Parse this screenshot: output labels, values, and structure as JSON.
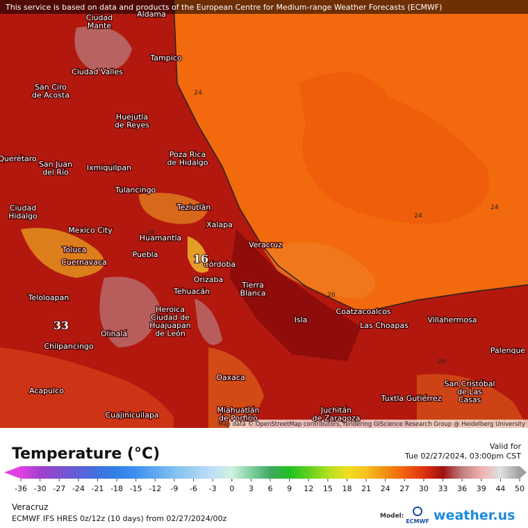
{
  "banner": "This service is based on data and products of the European Centre for Medium-range Weather Forecasts (ECMWF)",
  "attribution": "Map data © OpenStreetMap contributors, rendering GIScience Research Group @ Heidelberg University",
  "cities": [
    {
      "lines": [
        "Aldama"
      ]
    },
    {
      "lines": [
        "Ciudad",
        "Mante"
      ]
    },
    {
      "lines": [
        "Tampico"
      ]
    },
    {
      "lines": [
        "Ciudad Valles"
      ]
    },
    {
      "lines": [
        "San Ciro",
        "de Acosta"
      ]
    },
    {
      "lines": [
        "Huejutla",
        "de Reyes"
      ]
    },
    {
      "lines": [
        "Poza Rica",
        "de Hidalgo"
      ]
    },
    {
      "lines": [
        "Querétaro"
      ]
    },
    {
      "lines": [
        "San Juan",
        "del Río"
      ]
    },
    {
      "lines": [
        "Ixmiquilpan"
      ]
    },
    {
      "lines": [
        "Tulancingo"
      ]
    },
    {
      "lines": [
        "Teziutlán"
      ]
    },
    {
      "lines": [
        "Ciudad",
        "Hidalgo"
      ]
    },
    {
      "lines": [
        "Xalapa"
      ]
    },
    {
      "lines": [
        "Mexico City"
      ]
    },
    {
      "lines": [
        "Huamantla"
      ]
    },
    {
      "lines": [
        "Veracruz"
      ]
    },
    {
      "lines": [
        "Toluca"
      ]
    },
    {
      "lines": [
        "Puebla"
      ]
    },
    {
      "lines": [
        "Córdoba"
      ]
    },
    {
      "lines": [
        "Cuernavaca"
      ]
    },
    {
      "lines": [
        "Orizaba"
      ]
    },
    {
      "lines": [
        "Tierra",
        "Blanca"
      ]
    },
    {
      "lines": [
        "Tehuacán"
      ]
    },
    {
      "lines": [
        "Teloloapan"
      ]
    },
    {
      "lines": [
        "Heroica",
        "Ciudad de",
        "Huajuapan",
        "de León"
      ]
    },
    {
      "lines": [
        "Coatzacoalcos"
      ]
    },
    {
      "lines": [
        "Isla"
      ]
    },
    {
      "lines": [
        "Las Choapas"
      ]
    },
    {
      "lines": [
        "Villahermosa"
      ]
    },
    {
      "lines": [
        "Olinalá"
      ]
    },
    {
      "lines": [
        "Chilpancingo"
      ]
    },
    {
      "lines": [
        "Palenque"
      ]
    },
    {
      "lines": [
        "Oaxaca"
      ]
    },
    {
      "lines": [
        "San Cristóbal",
        "de Las",
        "Casas"
      ]
    },
    {
      "lines": [
        "Acapulco"
      ]
    },
    {
      "lines": [
        "Tuxtla Gutiérrez"
      ]
    },
    {
      "lines": [
        "Cuajinicuilapa"
      ]
    },
    {
      "lines": [
        "Miahuatlán",
        "de Porfirio"
      ]
    },
    {
      "lines": [
        "Juchitán",
        "de Zaragoza"
      ]
    }
  ],
  "contour_labels": [
    24,
    24,
    24,
    26,
    28,
    28
  ],
  "extreme_labels": [
    16,
    33
  ],
  "legend": {
    "title": "Temperature (°C)",
    "ticks": [
      -36,
      -30,
      -27,
      -24,
      -21,
      -18,
      -15,
      -12,
      -9,
      -6,
      -3,
      0,
      3,
      6,
      9,
      12,
      15,
      18,
      21,
      24,
      27,
      30,
      33,
      36,
      39,
      44,
      50
    ],
    "colors": [
      "#e040e0",
      "#a040d0",
      "#8050d0",
      "#6060d8",
      "#4070e0",
      "#3080e8",
      "#4090f0",
      "#60a8f0",
      "#80c0f0",
      "#a0d0f0",
      "#c0e0f8",
      "#d0f0e0",
      "#80d0a0",
      "#40a860",
      "#20c020",
      "#60d020",
      "#b0e020",
      "#f0e020",
      "#f8c020",
      "#f09010",
      "#f06010",
      "#e03010",
      "#a01010",
      "#c08080",
      "#f0b0b0",
      "#e0e0e0",
      "#a0a0a0"
    ]
  },
  "valid": {
    "label": "Valid for",
    "time": "Tue 02/27/2024, 03:00pm CST"
  },
  "footer": {
    "location": "Veracruz",
    "model_run": "ECMWF IFS HRES 0z/12z (10 days) from 02/27/2024/00z",
    "model_label": "Model:",
    "model_name": "ECMWF",
    "brand": "weather.us"
  }
}
